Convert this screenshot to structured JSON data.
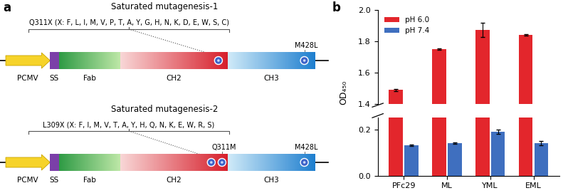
{
  "panel_labels": [
    "a",
    "b"
  ],
  "diagram": {
    "elements": [
      "PCMV",
      "SS",
      "Fab",
      "CH2",
      "CH3"
    ],
    "constructs": [
      {
        "title": "Saturated mutagenesis-1",
        "library": "Q311X (X: F, L, I, M, V, P, T, A, Y, G, H, N, K, D, E, W, S, C)",
        "fixed_mutations": [
          "M428L"
        ]
      },
      {
        "title": "Saturated mutagenesis-2",
        "library": "L309X (X: F, I, M, V, T, A, Y, H, Q, N, K, E, W, R, S)",
        "fixed_mutations": [
          "Q311M",
          "M428L"
        ]
      }
    ]
  },
  "chart_data": {
    "type": "bar",
    "y_label": "OD₄₅₀",
    "categories": [
      "PFc29",
      "ML",
      "YML",
      "EML"
    ],
    "series": [
      {
        "name": "pH 6.0",
        "color": "#e3262c",
        "values": [
          1.49,
          1.75,
          1.87,
          1.84
        ],
        "errors": [
          0.005,
          0.006,
          0.045,
          0.003
        ]
      },
      {
        "name": "pH 7.4",
        "color": "#3f6fbf",
        "values": [
          0.13,
          0.14,
          0.19,
          0.14
        ],
        "errors": [
          0.003,
          0.003,
          0.01,
          0.008
        ]
      }
    ],
    "ylim": [
      [
        0.0,
        0.25
      ],
      [
        1.4,
        2.0
      ]
    ],
    "yticks": [
      0.0,
      0.2,
      1.4,
      1.6,
      1.8,
      2.0
    ],
    "legend": "upper left"
  }
}
